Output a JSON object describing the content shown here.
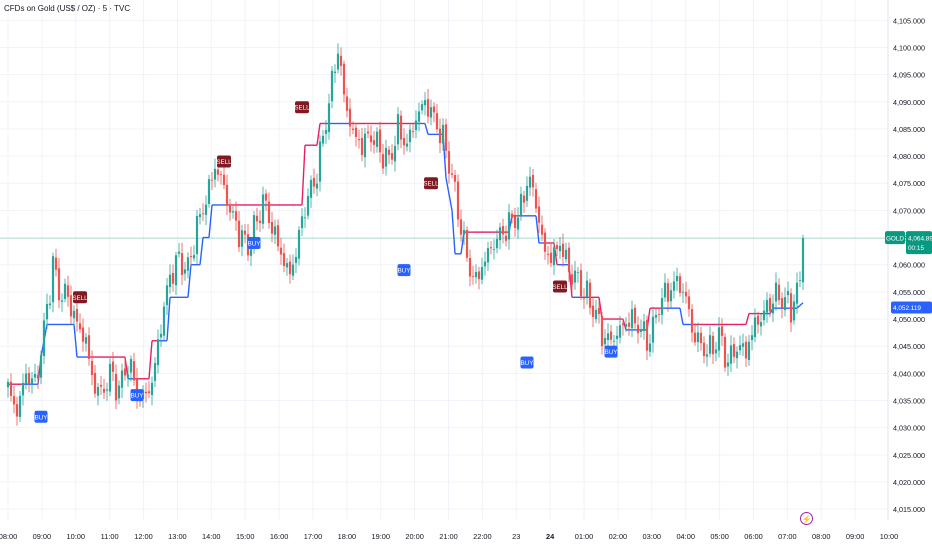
{
  "chart_title": "CFDs on Gold (US$ / OZ) · 5 · TVC",
  "chart_data": {
    "type": "candlestick",
    "symbol": "GOLD",
    "current_price": "4,064.890",
    "countdown": "00:15",
    "indicator_value": "4,052.119",
    "price_axis": {
      "ylim": [
        4013,
        4108
      ],
      "tick_values": [
        4015,
        4020,
        4025,
        4030,
        4035,
        4040,
        4045,
        4050,
        4055,
        4060,
        4065,
        4070,
        4075,
        4080,
        4085,
        4090,
        4095,
        4100,
        4105
      ],
      "tick_labels": [
        "4,015.000",
        "4,020.000",
        "4,025.000",
        "4,030.000",
        "4,035.000",
        "4,040.000",
        "4,045.000",
        "4,050.000",
        "4,055.000",
        "4,060.000",
        "4,065.000",
        "4,070.000",
        "4,075.000",
        "4,080.000",
        "4,085.000",
        "4,090.000",
        "4,095.000",
        "4,100.000",
        "4,105.000"
      ]
    },
    "time_axis": {
      "labels": [
        "08:00",
        "09:00",
        "10:00",
        "11:00",
        "12:00",
        "13:00",
        "14:00",
        "15:00",
        "16:00",
        "17:00",
        "18:00",
        "19:00",
        "20:00",
        "21:00",
        "22:00",
        "23",
        "24",
        "01:00",
        "02:00",
        "03:00",
        "04:00",
        "05:00",
        "06:00",
        "07:00",
        "08:00",
        "09:00",
        "10:00"
      ],
      "bold_index": 16
    },
    "price_path": [
      [
        0,
        4037
      ],
      [
        3,
        4033
      ],
      [
        6,
        4040
      ],
      [
        9,
        4038
      ],
      [
        11,
        4044
      ],
      [
        13,
        4052
      ],
      [
        15,
        4060
      ],
      [
        17,
        4055
      ],
      [
        20,
        4054
      ],
      [
        23,
        4049
      ],
      [
        26,
        4046
      ],
      [
        28,
        4039
      ],
      [
        31,
        4036
      ],
      [
        34,
        4040
      ],
      [
        37,
        4037
      ],
      [
        40,
        4042
      ],
      [
        44,
        4035
      ],
      [
        48,
        4038
      ],
      [
        51,
        4049
      ],
      [
        54,
        4058
      ],
      [
        57,
        4061
      ],
      [
        60,
        4059
      ],
      [
        63,
        4067
      ],
      [
        66,
        4072
      ],
      [
        69,
        4078
      ],
      [
        71,
        4076
      ],
      [
        74,
        4070
      ],
      [
        77,
        4066
      ],
      [
        80,
        4063
      ],
      [
        83,
        4068
      ],
      [
        85,
        4072
      ],
      [
        88,
        4067
      ],
      [
        91,
        4062
      ],
      [
        94,
        4058
      ],
      [
        97,
        4065
      ],
      [
        99,
        4071
      ],
      [
        102,
        4075
      ],
      [
        104,
        4080
      ],
      [
        107,
        4090
      ],
      [
        110,
        4100
      ],
      [
        112,
        4091
      ],
      [
        115,
        4084
      ],
      [
        118,
        4082
      ],
      [
        121,
        4084
      ],
      [
        124,
        4081
      ],
      [
        127,
        4079
      ],
      [
        130,
        4085
      ],
      [
        133,
        4082
      ],
      [
        136,
        4087
      ],
      [
        139,
        4090
      ],
      [
        142,
        4087
      ],
      [
        145,
        4083
      ],
      [
        147,
        4079
      ],
      [
        150,
        4070
      ],
      [
        152,
        4064
      ],
      [
        154,
        4059
      ],
      [
        156,
        4057
      ],
      [
        159,
        4061
      ],
      [
        162,
        4064
      ],
      [
        165,
        4066
      ],
      [
        168,
        4068
      ],
      [
        171,
        4070
      ],
      [
        173,
        4076
      ],
      [
        176,
        4072
      ],
      [
        178,
        4064
      ],
      [
        181,
        4061
      ],
      [
        184,
        4064
      ],
      [
        187,
        4059
      ],
      [
        190,
        4057
      ],
      [
        193,
        4054
      ],
      [
        196,
        4051
      ],
      [
        198,
        4047
      ],
      [
        201,
        4046
      ],
      [
        204,
        4048
      ],
      [
        207,
        4050
      ],
      [
        210,
        4049
      ],
      [
        213,
        4046
      ],
      [
        215,
        4048
      ],
      [
        217,
        4053
      ],
      [
        220,
        4055
      ],
      [
        223,
        4057
      ],
      [
        226,
        4054
      ],
      [
        228,
        4048
      ],
      [
        231,
        4045
      ],
      [
        234,
        4044
      ],
      [
        237,
        4047
      ],
      [
        240,
        4042
      ],
      [
        243,
        4045
      ],
      [
        246,
        4044
      ],
      [
        249,
        4049
      ],
      [
        252,
        4051
      ],
      [
        255,
        4054
      ],
      [
        258,
        4054
      ],
      [
        261,
        4052
      ],
      [
        263,
        4055
      ],
      [
        265,
        4059
      ]
    ],
    "support_line": [
      [
        0,
        4038
      ],
      [
        10,
        4038
      ],
      [
        11,
        4043
      ],
      [
        13,
        4049
      ],
      [
        22,
        4049
      ],
      [
        23,
        4043
      ],
      [
        39,
        4043
      ],
      [
        40,
        4039
      ],
      [
        47,
        4039
      ],
      [
        48,
        4046
      ],
      [
        53,
        4046
      ],
      [
        54,
        4054
      ],
      [
        60,
        4054
      ],
      [
        61,
        4060
      ],
      [
        64,
        4060
      ],
      [
        65,
        4065
      ],
      [
        67,
        4065
      ],
      [
        68,
        4071
      ],
      [
        98,
        4071
      ],
      [
        99,
        4082
      ],
      [
        103,
        4082
      ],
      [
        104,
        4086
      ],
      [
        139,
        4086
      ],
      [
        140,
        4084
      ],
      [
        145,
        4084
      ],
      [
        146,
        4076
      ],
      [
        148,
        4070
      ],
      [
        149,
        4062
      ],
      [
        151,
        4062
      ],
      [
        152,
        4066
      ],
      [
        167,
        4066
      ],
      [
        168,
        4069
      ],
      [
        176,
        4069
      ],
      [
        177,
        4064
      ],
      [
        182,
        4064
      ],
      [
        183,
        4060
      ],
      [
        187,
        4060
      ],
      [
        188,
        4054
      ],
      [
        197,
        4054
      ],
      [
        198,
        4050
      ],
      [
        205,
        4050
      ],
      [
        206,
        4048
      ],
      [
        213,
        4048
      ],
      [
        214,
        4052
      ],
      [
        224,
        4052
      ],
      [
        225,
        4049
      ],
      [
        246,
        4049
      ],
      [
        247,
        4051
      ],
      [
        254,
        4051
      ],
      [
        255,
        4052
      ],
      [
        263,
        4052
      ],
      [
        265,
        4053
      ]
    ],
    "signals": [
      {
        "label": "BUY",
        "type": "buy",
        "bar": 11,
        "price": 4032
      },
      {
        "label": "SELL",
        "type": "sell",
        "bar": 24,
        "price": 4054
      },
      {
        "label": "BUY",
        "type": "buy",
        "bar": 43,
        "price": 4036
      },
      {
        "label": "SELL",
        "type": "sell",
        "bar": 72,
        "price": 4079
      },
      {
        "label": "BUY",
        "type": "buy",
        "bar": 82,
        "price": 4064
      },
      {
        "label": "SELL",
        "type": "sell",
        "bar": 98,
        "price": 4089
      },
      {
        "label": "BUY",
        "type": "buy",
        "bar": 132,
        "price": 4059
      },
      {
        "label": "SELL",
        "type": "sell",
        "bar": 141,
        "price": 4075
      },
      {
        "label": "BUY",
        "type": "buy",
        "bar": 173,
        "price": 4042
      },
      {
        "label": "SELL",
        "type": "sell",
        "bar": 184,
        "price": 4056
      },
      {
        "label": "BUY",
        "type": "buy",
        "bar": 201,
        "price": 4044
      }
    ],
    "colors": {
      "up": "#26a69a",
      "down": "#ef5350",
      "line_up": "#2962ff",
      "line_down": "#e91e63",
      "buy_bg": "#2962ff",
      "sell_bg": "#801922",
      "price_label": "#089981",
      "grid": "#f0f3fa"
    }
  }
}
